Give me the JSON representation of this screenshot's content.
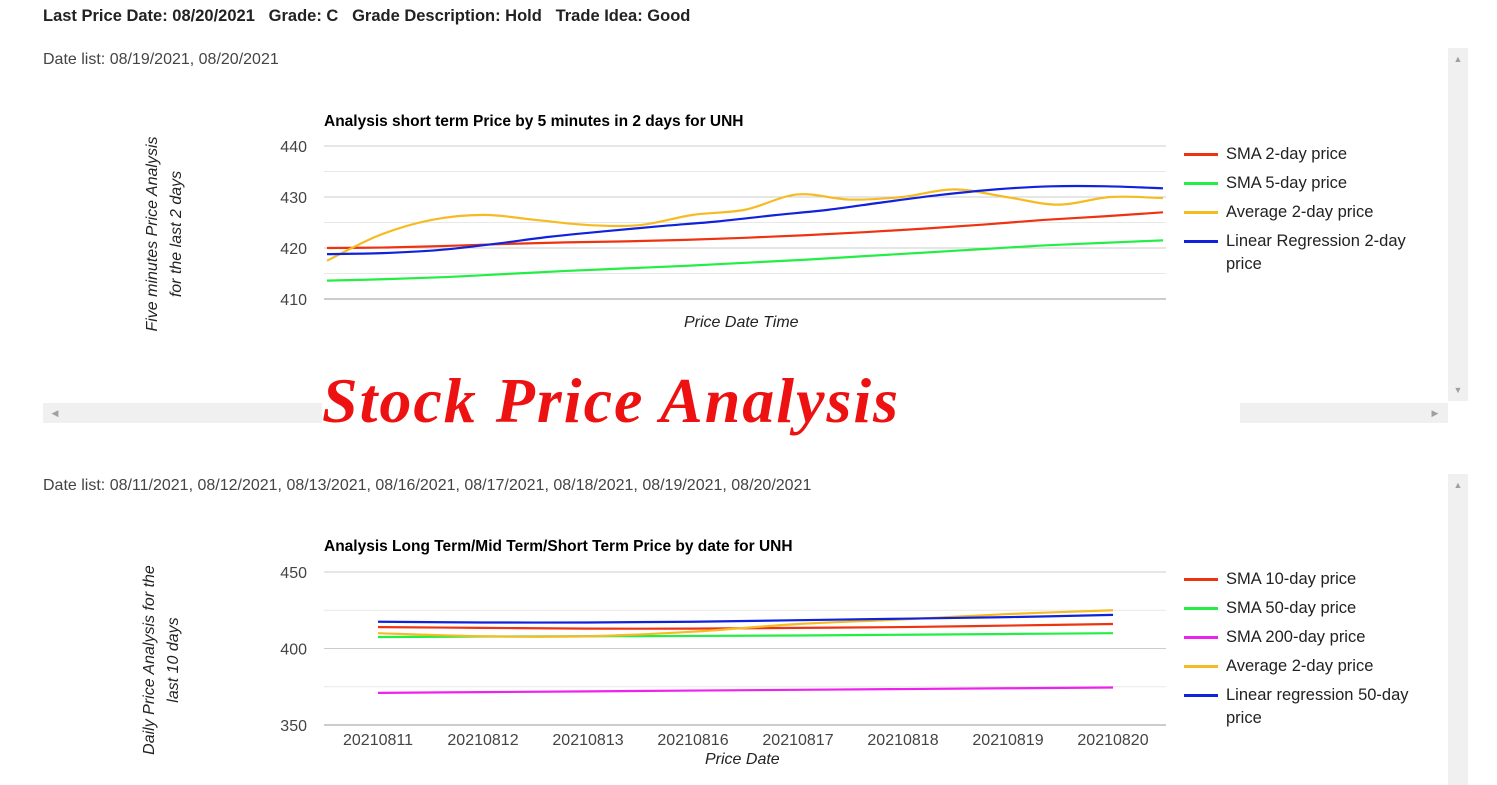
{
  "header": {
    "text": "Last Price Date: 08/20/2021   Grade: C   Grade Description: Hold   Trade Idea: Good"
  },
  "overlay_title": "Stock Price Analysis",
  "chart1": {
    "date_list": "Date list: 08/19/2021, 08/20/2021",
    "title": "Analysis short term Price by 5 minutes in 2 days for UNH",
    "ylabel": "Five minutes Price Analysis for the last 2 days",
    "xlabel": "Price Date Time",
    "ticks": [
      "440",
      "430",
      "420",
      "410"
    ],
    "legend": [
      {
        "label": "SMA 2-day price",
        "color": "#ee3311"
      },
      {
        "label": "SMA 5-day price",
        "color": "#22ee44"
      },
      {
        "label": "Average 2-day price",
        "color": "#f5bb22"
      },
      {
        "label": "Linear Regression 2-day price",
        "color": "#1122dd"
      }
    ]
  },
  "chart2": {
    "date_list": "Date list: 08/11/2021, 08/12/2021, 08/13/2021, 08/16/2021, 08/17/2021, 08/18/2021, 08/19/2021, 08/20/2021",
    "title": "Analysis Long Term/Mid Term/Short Term Price by date for UNH",
    "ylabel": "Daily Price Analysis for the last 10 days",
    "xlabel": "Price Date",
    "ticks": [
      "450",
      "400",
      "350"
    ],
    "legend": [
      {
        "label": "SMA 10-day price",
        "color": "#ee3311"
      },
      {
        "label": "SMA 50-day price",
        "color": "#22ee44"
      },
      {
        "label": "SMA 200-day price",
        "color": "#ee22ee"
      },
      {
        "label": "Average 2-day price",
        "color": "#f5bb22"
      },
      {
        "label": "Linear regression 50-day price",
        "color": "#1122dd"
      }
    ]
  },
  "chart_data": [
    {
      "type": "line",
      "title": "Analysis short term Price by 5 minutes in 2 days for UNH",
      "xlabel": "Price Date Time",
      "ylabel": "Five minutes Price Analysis for the last 2 days",
      "ylim": [
        410,
        440
      ],
      "grid": true,
      "legend_position": "right",
      "series": [
        {
          "name": "SMA 2-day price",
          "color": "#ee3311",
          "values": [
            420.0,
            420.1,
            420.4,
            420.8,
            421.1,
            421.3,
            421.6,
            422.0,
            422.5,
            423.1,
            423.8,
            424.6,
            425.5,
            426.2,
            427.0
          ]
        },
        {
          "name": "SMA 5-day price",
          "color": "#22ee44",
          "values": [
            413.6,
            413.9,
            414.3,
            414.9,
            415.5,
            416.0,
            416.5,
            417.1,
            417.7,
            418.4,
            419.1,
            419.8,
            420.5,
            421.0,
            421.5
          ]
        },
        {
          "name": "Average 2-day price",
          "color": "#f5bb22",
          "values": [
            417.5,
            422.5,
            425.5,
            426.5,
            425.5,
            424.5,
            424.5,
            426.5,
            427.5,
            430.5,
            429.5,
            430.0,
            431.5,
            430.0,
            428.5,
            430.0,
            429.8
          ]
        },
        {
          "name": "Linear Regression 2-day price",
          "color": "#1122dd",
          "values": [
            418.8,
            419.0,
            419.6,
            420.8,
            422.2,
            423.3,
            424.3,
            425.2,
            426.4,
            427.5,
            429.0,
            430.4,
            431.5,
            432.1,
            432.1,
            431.7
          ]
        }
      ]
    },
    {
      "type": "line",
      "title": "Analysis Long Term/Mid Term/Short Term Price by date for UNH",
      "xlabel": "Price Date",
      "ylabel": "Daily Price Analysis for the last 10 days",
      "ylim": [
        350,
        450
      ],
      "grid": true,
      "legend_position": "right",
      "categories": [
        "20210811",
        "20210812",
        "20210813",
        "20210816",
        "20210817",
        "20210818",
        "20210819",
        "20210820"
      ],
      "series": [
        {
          "name": "SMA 10-day price",
          "color": "#ee3311",
          "values": [
            414.0,
            413.5,
            413.0,
            413.0,
            413.5,
            414.0,
            415.0,
            416.0
          ]
        },
        {
          "name": "SMA 50-day price",
          "color": "#22ee44",
          "values": [
            407.5,
            407.8,
            408.0,
            408.2,
            408.5,
            409.0,
            409.5,
            410.0
          ]
        },
        {
          "name": "SMA 200-day price",
          "color": "#ee22ee",
          "values": [
            371.0,
            371.5,
            372.0,
            372.5,
            373.0,
            373.5,
            374.0,
            374.5
          ]
        },
        {
          "name": "Average 2-day price",
          "color": "#f5bb22",
          "values": [
            410.0,
            408.0,
            408.0,
            411.0,
            416.0,
            419.0,
            422.5,
            425.0
          ]
        },
        {
          "name": "Linear regression 50-day price",
          "color": "#1122dd",
          "values": [
            417.5,
            417.0,
            417.0,
            417.5,
            418.5,
            419.5,
            420.5,
            422.0
          ]
        }
      ]
    }
  ]
}
